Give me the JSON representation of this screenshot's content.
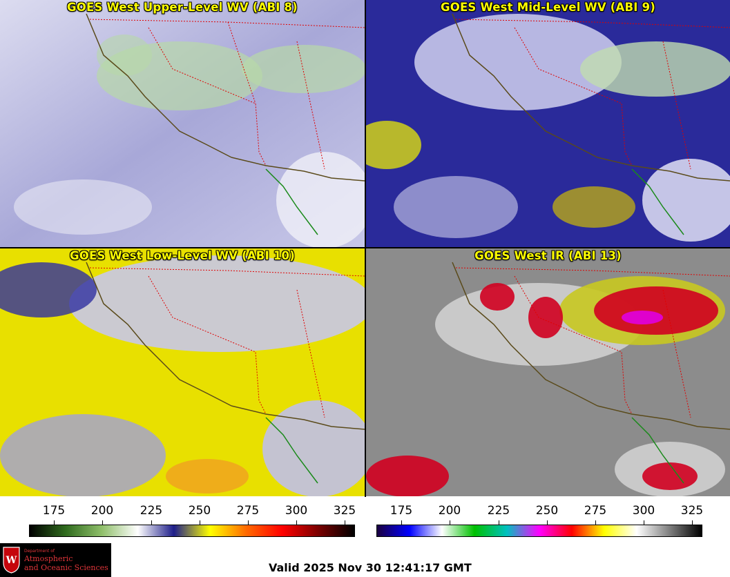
{
  "panels": [
    {
      "title": "GOES West Upper-Level WV (ABI 8)"
    },
    {
      "title": "GOES West Mid-Level WV (ABI 9)"
    },
    {
      "title": "GOES West Low-Level WV (ABI 10)"
    },
    {
      "title": "GOES West IR (ABI 13)"
    }
  ],
  "wv_scale": {
    "ticks": [
      "175",
      "200",
      "225",
      "250",
      "275",
      "300",
      "325"
    ],
    "colors": [
      "#000000",
      "#2f6b1e",
      "#8fbf6a",
      "#ffffff",
      "#1e1e8a",
      "#ffff00",
      "#ff6a00",
      "#ff0000",
      "#7a0000",
      "#000000"
    ]
  },
  "ir_scale": {
    "ticks": [
      "175",
      "200",
      "225",
      "250",
      "275",
      "300",
      "325"
    ],
    "colors": [
      "#1a0040",
      "#0000ff",
      "#ffffff",
      "#00c000",
      "#00c0c0",
      "#ff00ff",
      "#ff0000",
      "#ffff00",
      "#ffffff",
      "#808080",
      "#000000"
    ]
  },
  "logo": {
    "line1": "Department of",
    "line2": "Atmospheric",
    "line3": "and Oceanic Sciences"
  },
  "valid_text": "Valid 2025 Nov 30 12:41:17 GMT"
}
